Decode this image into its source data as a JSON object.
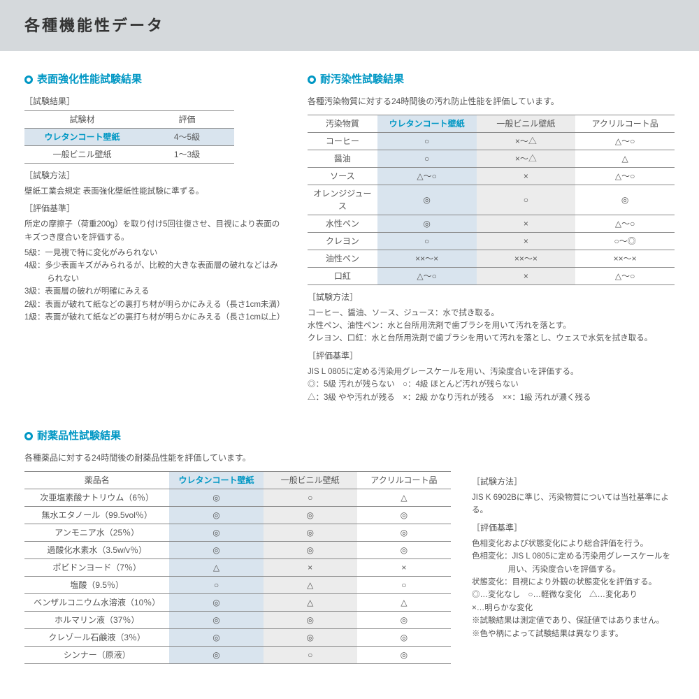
{
  "page_title": "各種機能性データ",
  "colors": {
    "accent": "#0097c4",
    "header_bg": "#d5d9dc",
    "shade_blue": "#d9e4ee",
    "shade_gray": "#ececec",
    "text": "#555555",
    "border": "#888888"
  },
  "section1": {
    "title": "表面強化性能試験結果",
    "result_label": "［試験結果］",
    "columns": [
      "試験材",
      "評価"
    ],
    "rows": [
      {
        "material": "ウレタンコート壁紙",
        "grade": "4～5級",
        "highlight": true
      },
      {
        "material": "一般ビニル壁紙",
        "grade": "1～3級",
        "highlight": false
      }
    ],
    "method_label": "［試験方法］",
    "method_text": "壁紙工業会規定 表面強化壁紙性能試験に準ずる。",
    "criteria_label": "［評価基準］",
    "criteria_text": "所定の摩擦子（荷重200g）を取り付け5回往復させ、目視により表面のキズつき度合いを評価する。",
    "grades": [
      "5級：一見視で特に変化がみられない",
      "4級：多少表面キズがみられるが、比較的大きな表面層の破れなどはみられない",
      "3級：表面層の破れが明確にみえる",
      "2級：表面が破れて紙などの裏打ち材が明らかにみえる（長さ1cm未満）",
      "1級：表面が破れて紙などの裏打ち材が明らかにみえる（長さ1cm以上）"
    ]
  },
  "section2": {
    "title": "耐汚染性試験結果",
    "desc": "各種汚染物質に対する24時間後の汚れ防止性能を評価しています。",
    "columns": [
      "汚染物質",
      "ウレタンコート壁紙",
      "一般ビニル壁紙",
      "アクリルコート品"
    ],
    "rows": [
      [
        "コーヒー",
        "○",
        "×～△",
        "△～○"
      ],
      [
        "醤油",
        "○",
        "×～△",
        "△"
      ],
      [
        "ソース",
        "△～○",
        "×",
        "△～○"
      ],
      [
        "オレンジジュース",
        "◎",
        "○",
        "◎"
      ],
      [
        "水性ペン",
        "◎",
        "×",
        "△～○"
      ],
      [
        "クレヨン",
        "○",
        "×",
        "○～◎"
      ],
      [
        "油性ペン",
        "××～×",
        "××～×",
        "××～×"
      ],
      [
        "口紅",
        "△～○",
        "×",
        "△～○"
      ]
    ],
    "method_label": "［試験方法］",
    "method_lines": [
      "コーヒー、醤油、ソース、ジュース：水で拭き取る。",
      "水性ペン、油性ペン：水と台所用洗剤で歯ブラシを用いて汚れを落とす。",
      "クレヨン、口紅：水と台所用洗剤で歯ブラシを用いて汚れを落とし、ウェスで水気を拭き取る。"
    ],
    "criteria_label": "［評価基準］",
    "criteria_line": "JIS L 0805に定める汚染用グレースケールを用い、汚染度合いを評価する。",
    "legend_lines": [
      "◎：5級 汚れが残らない　○：4級 ほとんど汚れが残らない",
      "△：3級 やや汚れが残る　×：2級 かなり汚れが残る　××：1級 汚れが濃く残る"
    ]
  },
  "section3": {
    "title": "耐薬品性試験結果",
    "desc": "各種薬品に対する24時間後の耐薬品性能を評価しています。",
    "columns": [
      "薬品名",
      "ウレタンコート壁紙",
      "一般ビニル壁紙",
      "アクリルコート品"
    ],
    "rows": [
      [
        "次亜塩素酸ナトリウム（6％）",
        "◎",
        "○",
        "△"
      ],
      [
        "無水エタノール（99.5vol％）",
        "◎",
        "◎",
        "◎"
      ],
      [
        "アンモニア水（25％）",
        "◎",
        "◎",
        "◎"
      ],
      [
        "過酸化水素水（3.5w/v％）",
        "◎",
        "◎",
        "◎"
      ],
      [
        "ポビドンヨード（7％）",
        "△",
        "×",
        "×"
      ],
      [
        "塩酸（9.5％）",
        "○",
        "△",
        "○"
      ],
      [
        "ベンザルコニウム水溶液（10％）",
        "◎",
        "△",
        "△"
      ],
      [
        "ホルマリン液（37％）",
        "◎",
        "◎",
        "◎"
      ],
      [
        "クレゾール石鹸液（3％）",
        "◎",
        "◎",
        "◎"
      ],
      [
        "シンナー（原液）",
        "◎",
        "○",
        "◎"
      ]
    ],
    "side_notes": {
      "method_label": "［試験方法］",
      "method_text": "JIS K 6902Bに準じ、汚染物質については当社基準による。",
      "criteria_label": "［評価基準］",
      "criteria_lines": [
        "色相変化および状態変化により総合評価を行う。",
        "色相変化：JIS L 0805に定める汚染用グレースケールを用い、汚染度合いを評価する。",
        "状態変化：目視により外観の状態変化を評価する。",
        "◎…変化なし　○…軽微な変化　△…変化あり",
        "×…明らかな変化",
        "※試験結果は測定値であり、保証値ではありません。",
        "※色や柄によって試験結果は異なります。"
      ]
    }
  }
}
